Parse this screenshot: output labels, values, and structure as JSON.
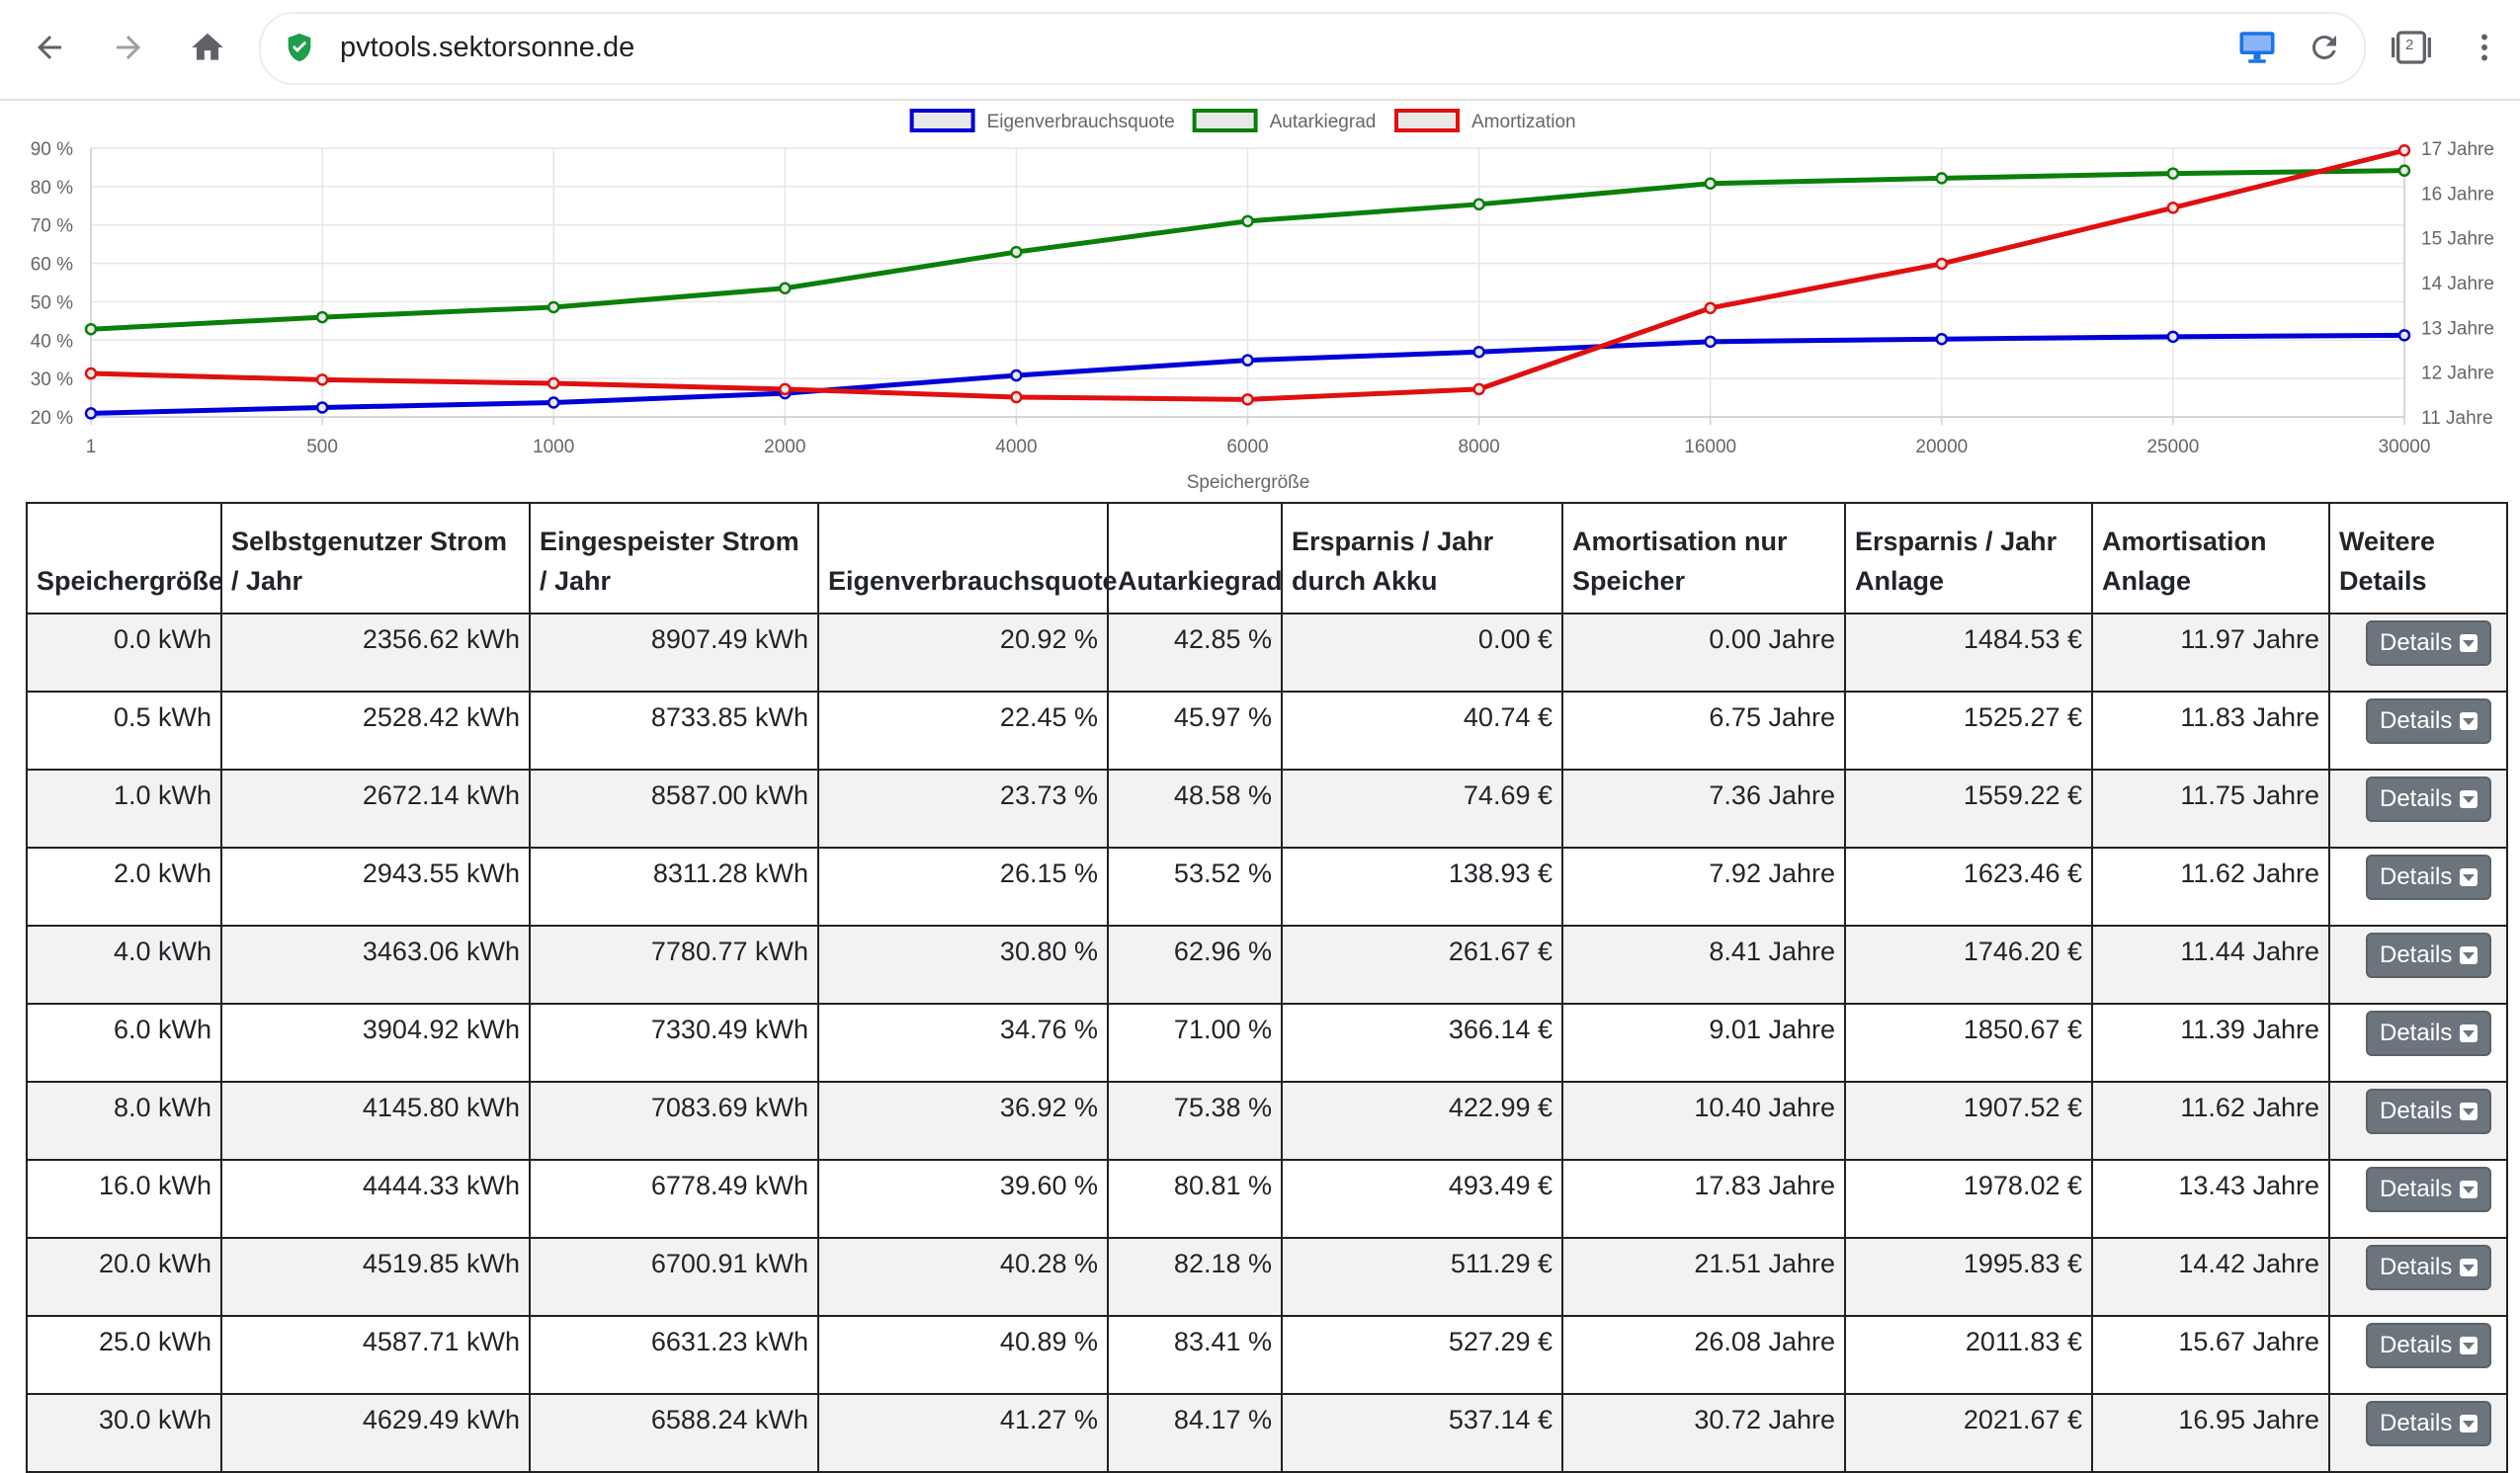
{
  "browser": {
    "url": "pvtools.sektorsonne.de",
    "tab_count": "2"
  },
  "colors": {
    "eigenverbrauch": "#0000d6",
    "autarkie": "#0a7f0a",
    "amortization": "#e01010"
  },
  "chart_data": {
    "type": "line",
    "categories": [
      "1",
      "500",
      "1000",
      "2000",
      "4000",
      "6000",
      "8000",
      "16000",
      "20000",
      "25000",
      "30000"
    ],
    "xlabel": "Speichergröße",
    "y_left": {
      "ticks": [
        "20 %",
        "30 %",
        "40 %",
        "50 %",
        "60 %",
        "70 %",
        "80 %",
        "90 %"
      ],
      "min": 20,
      "max": 90
    },
    "y_right": {
      "ticks": [
        "11 Jahre",
        "12 Jahre",
        "13 Jahre",
        "14 Jahre",
        "15 Jahre",
        "16 Jahre",
        "17 Jahre"
      ],
      "min": 11,
      "max": 17
    },
    "legend_position": "top",
    "grid": true,
    "series": [
      {
        "name": "Eigenverbrauchsquote",
        "axis": "left",
        "color": "#0000d6",
        "values": [
          20.92,
          22.45,
          23.73,
          26.15,
          30.8,
          34.76,
          36.92,
          39.6,
          40.28,
          40.89,
          41.27
        ]
      },
      {
        "name": "Autarkiegrad",
        "axis": "left",
        "color": "#0a7f0a",
        "values": [
          42.85,
          45.97,
          48.58,
          53.52,
          62.96,
          71.0,
          75.38,
          80.81,
          82.18,
          83.41,
          84.17
        ]
      },
      {
        "name": "Amortization",
        "axis": "right",
        "color": "#e01010",
        "values": [
          11.97,
          11.83,
          11.75,
          11.62,
          11.44,
          11.39,
          11.62,
          13.43,
          14.42,
          15.67,
          16.95
        ]
      }
    ]
  },
  "table": {
    "headers": [
      "Speichergröße",
      "Selbstgenutzer Strom / Jahr",
      "Eingespeister Strom / Jahr",
      "Eigenverbrauchsquote",
      "Autarkiegrad",
      "Ersparnis / Jahr durch Akku",
      "Amortisation nur Speicher",
      "Ersparnis / Jahr Anlage",
      "Amortisation Anlage",
      "Weitere Details"
    ],
    "details_label": "Details",
    "rows": [
      [
        "0.0 kWh",
        "2356.62 kWh",
        "8907.49 kWh",
        "20.92 %",
        "42.85 %",
        "0.00 €",
        "0.00 Jahre",
        "1484.53 €",
        "11.97 Jahre"
      ],
      [
        "0.5 kWh",
        "2528.42 kWh",
        "8733.85 kWh",
        "22.45 %",
        "45.97 %",
        "40.74 €",
        "6.75 Jahre",
        "1525.27 €",
        "11.83 Jahre"
      ],
      [
        "1.0 kWh",
        "2672.14 kWh",
        "8587.00 kWh",
        "23.73 %",
        "48.58 %",
        "74.69 €",
        "7.36 Jahre",
        "1559.22 €",
        "11.75 Jahre"
      ],
      [
        "2.0 kWh",
        "2943.55 kWh",
        "8311.28 kWh",
        "26.15 %",
        "53.52 %",
        "138.93 €",
        "7.92 Jahre",
        "1623.46 €",
        "11.62 Jahre"
      ],
      [
        "4.0 kWh",
        "3463.06 kWh",
        "7780.77 kWh",
        "30.80 %",
        "62.96 %",
        "261.67 €",
        "8.41 Jahre",
        "1746.20 €",
        "11.44 Jahre"
      ],
      [
        "6.0 kWh",
        "3904.92 kWh",
        "7330.49 kWh",
        "34.76 %",
        "71.00 %",
        "366.14 €",
        "9.01 Jahre",
        "1850.67 €",
        "11.39 Jahre"
      ],
      [
        "8.0 kWh",
        "4145.80 kWh",
        "7083.69 kWh",
        "36.92 %",
        "75.38 %",
        "422.99 €",
        "10.40 Jahre",
        "1907.52 €",
        "11.62 Jahre"
      ],
      [
        "16.0 kWh",
        "4444.33 kWh",
        "6778.49 kWh",
        "39.60 %",
        "80.81 %",
        "493.49 €",
        "17.83 Jahre",
        "1978.02 €",
        "13.43 Jahre"
      ],
      [
        "20.0 kWh",
        "4519.85 kWh",
        "6700.91 kWh",
        "40.28 %",
        "82.18 %",
        "511.29 €",
        "21.51 Jahre",
        "1995.83 €",
        "14.42 Jahre"
      ],
      [
        "25.0 kWh",
        "4587.71 kWh",
        "6631.23 kWh",
        "40.89 %",
        "83.41 %",
        "527.29 €",
        "26.08 Jahre",
        "2011.83 €",
        "15.67 Jahre"
      ],
      [
        "30.0 kWh",
        "4629.49 kWh",
        "6588.24 kWh",
        "41.27 %",
        "84.17 %",
        "537.14 €",
        "30.72 Jahre",
        "2021.67 €",
        "16.95 Jahre"
      ]
    ]
  }
}
